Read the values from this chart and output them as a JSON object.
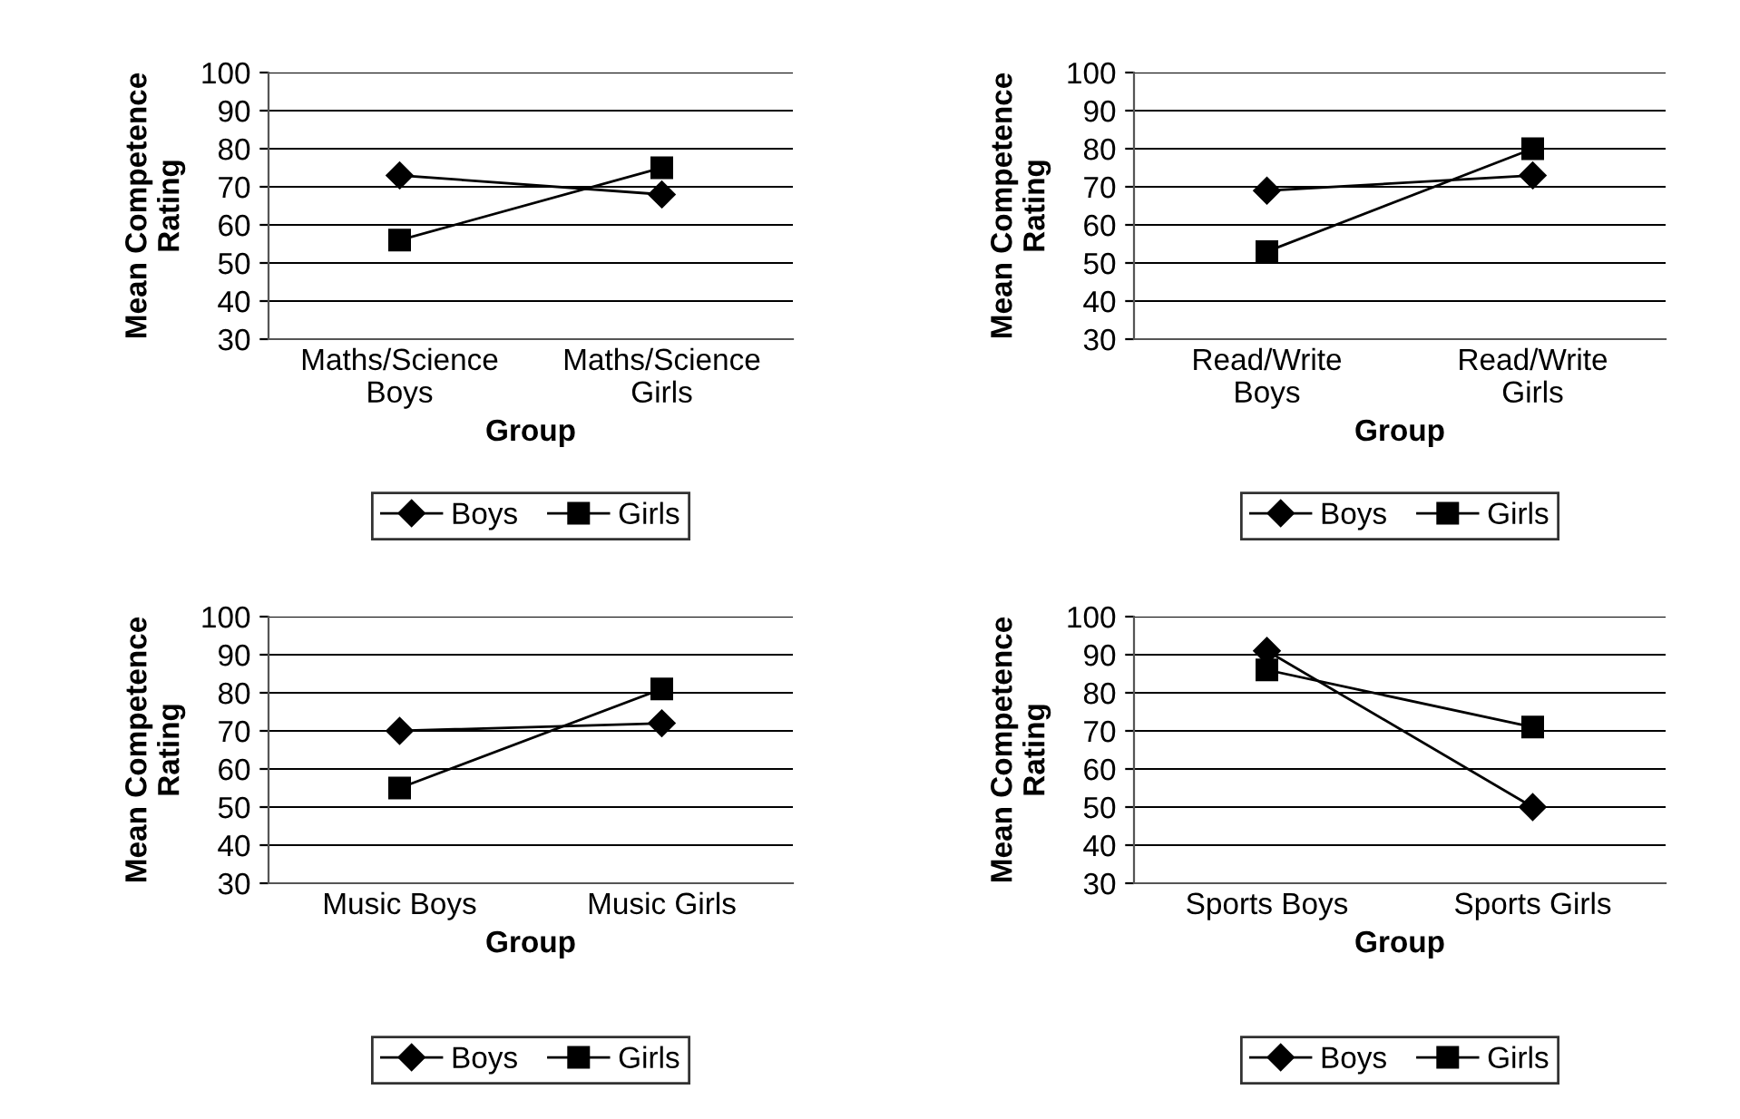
{
  "chart_data": [
    {
      "type": "line",
      "ylabel": "Mean Competence\nRating",
      "xlabel": "Group",
      "categories": [
        "Maths/Science\nBoys",
        "Maths/Science\nGirls"
      ],
      "ylim": [
        30,
        100
      ],
      "yticks": [
        30,
        40,
        50,
        60,
        70,
        80,
        90,
        100
      ],
      "grid": "y",
      "legend": "bottom",
      "series": [
        {
          "name": "Boys",
          "color": "#000000",
          "marker": "diamond",
          "values": [
            73,
            68
          ]
        },
        {
          "name": "Girls",
          "color": "#000000",
          "marker": "square",
          "values": [
            56,
            75
          ]
        }
      ]
    },
    {
      "type": "line",
      "ylabel": "Mean Competence\nRating",
      "xlabel": "Group",
      "categories": [
        "Read/Write\nBoys",
        "Read/Write\nGirls"
      ],
      "ylim": [
        30,
        100
      ],
      "yticks": [
        30,
        40,
        50,
        60,
        70,
        80,
        90,
        100
      ],
      "grid": "y",
      "legend": "bottom",
      "series": [
        {
          "name": "Boys",
          "color": "#000000",
          "marker": "diamond",
          "values": [
            69,
            73
          ]
        },
        {
          "name": "Girls",
          "color": "#000000",
          "marker": "square",
          "values": [
            53,
            80
          ]
        }
      ]
    },
    {
      "type": "line",
      "ylabel": "Mean Competence\nRating",
      "xlabel": "Group",
      "categories": [
        "Music Boys",
        "Music Girls"
      ],
      "ylim": [
        30,
        100
      ],
      "yticks": [
        30,
        40,
        50,
        60,
        70,
        80,
        90,
        100
      ],
      "grid": "y",
      "legend": "bottom",
      "series": [
        {
          "name": "Boys",
          "color": "#000000",
          "marker": "diamond",
          "values": [
            70,
            72
          ]
        },
        {
          "name": "Girls",
          "color": "#000000",
          "marker": "square",
          "values": [
            55,
            81
          ]
        }
      ]
    },
    {
      "type": "line",
      "ylabel": "Mean Competence\nRating",
      "xlabel": "Group",
      "categories": [
        "Sports Boys",
        "Sports Girls"
      ],
      "ylim": [
        30,
        100
      ],
      "yticks": [
        30,
        40,
        50,
        60,
        70,
        80,
        90,
        100
      ],
      "grid": "y",
      "legend": "bottom",
      "series": [
        {
          "name": "Boys",
          "color": "#000000",
          "marker": "diamond",
          "values": [
            91,
            50
          ]
        },
        {
          "name": "Girls",
          "color": "#000000",
          "marker": "square",
          "values": [
            86,
            71
          ]
        }
      ]
    }
  ]
}
